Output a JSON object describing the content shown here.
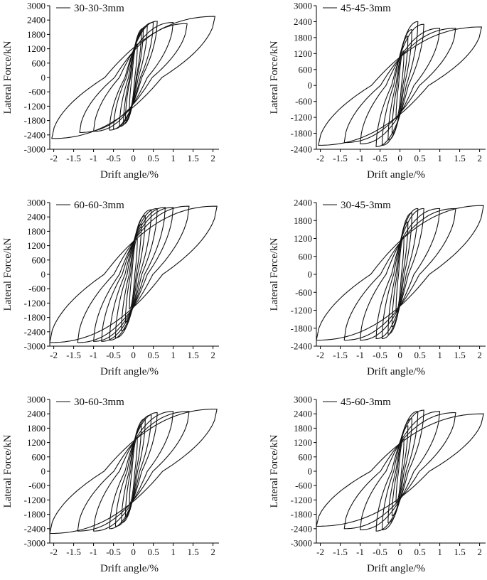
{
  "chart_data": [
    {
      "type": "line",
      "xlabel": "Drift angle/%",
      "ylabel": "Lateral Force/kN",
      "xlim": [
        -2.1,
        2.15
      ],
      "ylim": [
        -3000,
        3000
      ],
      "x_ticks": [
        -2,
        -1.5,
        -1,
        -0.5,
        0,
        0.5,
        1,
        1.5,
        2
      ],
      "x_tick_labels": [
        "-2",
        "-1.5",
        "-1",
        "-0.5",
        "0",
        "0.5",
        "1",
        "1.5",
        "2"
      ],
      "y_ticks": [
        3000,
        2400,
        1800,
        1200,
        600,
        0,
        -600,
        -1200,
        -1800,
        -2400,
        -3000
      ],
      "y_tick_labels": [
        "3000",
        "2400",
        "1800",
        "1200",
        "600",
        "0",
        "-600",
        "-1200",
        "-1800",
        "-2400",
        "-3000"
      ],
      "legend": "30-30-3mm",
      "legend_position": "top-left",
      "amplitudes": [
        [
          0.1,
          1400,
          -1350
        ],
        [
          0.2,
          1900,
          -1800
        ],
        [
          0.25,
          2050,
          -1950
        ],
        [
          0.35,
          2150,
          -2050
        ],
        [
          0.5,
          2300,
          -2150
        ],
        [
          0.6,
          2350,
          -2200
        ],
        [
          1.0,
          2300,
          -2250
        ],
        [
          1.35,
          2250,
          -2300
        ],
        [
          2.05,
          2550,
          -2550
        ]
      ]
    },
    {
      "type": "line",
      "xlabel": "Drift angle/%",
      "ylabel": "Lateral Force/kN",
      "xlim": [
        -2.1,
        2.15
      ],
      "ylim": [
        -2400,
        3000
      ],
      "x_ticks": [
        -2,
        -1.5,
        -1,
        -0.5,
        0,
        0.5,
        1,
        1.5,
        2
      ],
      "x_tick_labels": [
        "-2",
        "-1.5",
        "-1",
        "-0.5",
        "0",
        "0.5",
        "1",
        "1.5",
        "2"
      ],
      "y_ticks": [
        3000,
        2400,
        1800,
        1200,
        600,
        0,
        -600,
        -1200,
        -1800,
        -2400
      ],
      "y_tick_labels": [
        "3000",
        "2400",
        "1800",
        "1200",
        "600",
        "0",
        "-600",
        "-1200",
        "-1800",
        "-2400"
      ],
      "legend": "45-45-3mm",
      "legend_position": "top-left",
      "amplitudes": [
        [
          0.1,
          1300,
          -1250
        ],
        [
          0.2,
          1850,
          -1800
        ],
        [
          0.3,
          2100,
          -2050
        ],
        [
          0.45,
          2400,
          -2250
        ],
        [
          0.6,
          2300,
          -2300
        ],
        [
          1.0,
          2150,
          -2200
        ],
        [
          1.4,
          2150,
          -2150
        ],
        [
          2.05,
          2200,
          -2250
        ]
      ]
    },
    {
      "type": "line",
      "xlabel": "Drift angle/%",
      "ylabel": "Lateral Force/kN",
      "xlim": [
        -2.1,
        2.15
      ],
      "ylim": [
        -3000,
        3000
      ],
      "x_ticks": [
        -2,
        -1.5,
        -1,
        -0.5,
        0,
        0.5,
        1,
        1.5,
        2
      ],
      "x_tick_labels": [
        "-2",
        "-1.5",
        "-1",
        "-0.5",
        "0",
        "0.5",
        "1",
        "1.5",
        "2"
      ],
      "y_ticks": [
        3000,
        2400,
        1800,
        1200,
        600,
        0,
        -600,
        -1200,
        -1800,
        -2400,
        -3000
      ],
      "y_tick_labels": [
        "3000",
        "2400",
        "1800",
        "1200",
        "600",
        "0",
        "-600",
        "-1200",
        "-1800",
        "-2400",
        "-3000"
      ],
      "legend": "60-60-3mm",
      "legend_position": "top-left",
      "amplitudes": [
        [
          0.1,
          1500,
          -1450
        ],
        [
          0.2,
          2100,
          -2000
        ],
        [
          0.3,
          2450,
          -2350
        ],
        [
          0.45,
          2700,
          -2650
        ],
        [
          0.6,
          2750,
          -2750
        ],
        [
          0.8,
          2800,
          -2800
        ],
        [
          1.0,
          2800,
          -2800
        ],
        [
          1.4,
          2850,
          -2850
        ],
        [
          2.1,
          2850,
          -2850
        ]
      ]
    },
    {
      "type": "line",
      "xlabel": "Drift angle/%",
      "ylabel": "Lateral Force/kN",
      "xlim": [
        -2.1,
        2.15
      ],
      "ylim": [
        -2400,
        2400
      ],
      "x_ticks": [
        -2,
        -1.5,
        -1,
        -0.5,
        0,
        0.5,
        1,
        1.5,
        2
      ],
      "x_tick_labels": [
        "-2",
        "-1.5",
        "-1",
        "-0.5",
        "0",
        "0.5",
        "1",
        "1.5",
        "2"
      ],
      "y_ticks": [
        2400,
        1800,
        1200,
        600,
        0,
        -600,
        -1200,
        -1800,
        -2400
      ],
      "y_tick_labels": [
        "2400",
        "1800",
        "1200",
        "600",
        "0",
        "-600",
        "-1200",
        "-1800",
        "-2400"
      ],
      "legend": "30-45-3mm",
      "legend_position": "top-left",
      "amplitudes": [
        [
          0.1,
          1250,
          -1250
        ],
        [
          0.2,
          1750,
          -1750
        ],
        [
          0.3,
          2050,
          -2000
        ],
        [
          0.45,
          2200,
          -2150
        ],
        [
          0.6,
          2200,
          -2150
        ],
        [
          1.0,
          2200,
          -2200
        ],
        [
          1.4,
          2200,
          -2200
        ],
        [
          2.1,
          2300,
          -2200
        ]
      ]
    },
    {
      "type": "line",
      "xlabel": "Drift angle/%",
      "ylabel": "Lateral Force/kN",
      "xlim": [
        -2.1,
        2.15
      ],
      "ylim": [
        -3000,
        3000
      ],
      "x_ticks": [
        -2,
        -1.5,
        -1,
        -0.5,
        0,
        0.5,
        1,
        1.5,
        2
      ],
      "x_tick_labels": [
        "-2",
        "-1.5",
        "-1",
        "-0.5",
        "0",
        "0.5",
        "1",
        "1.5",
        "2"
      ],
      "y_ticks": [
        3000,
        2400,
        1800,
        1200,
        600,
        0,
        -600,
        -1200,
        -1800,
        -2400,
        -3000
      ],
      "y_tick_labels": [
        "3000",
        "2400",
        "1800",
        "1200",
        "600",
        "0",
        "-600",
        "-1200",
        "-1800",
        "-2400",
        "-3000"
      ],
      "legend": "30-60-3mm",
      "legend_position": "top-left",
      "amplitudes": [
        [
          0.1,
          1400,
          -1350
        ],
        [
          0.2,
          1950,
          -1900
        ],
        [
          0.3,
          2200,
          -2150
        ],
        [
          0.45,
          2350,
          -2300
        ],
        [
          0.6,
          2450,
          -2400
        ],
        [
          1.0,
          2500,
          -2500
        ],
        [
          1.4,
          2500,
          -2500
        ],
        [
          2.1,
          2600,
          -2600
        ]
      ]
    },
    {
      "type": "line",
      "xlabel": "Drift angle/%",
      "ylabel": "Lateral Force/kN",
      "xlim": [
        -2.1,
        2.15
      ],
      "ylim": [
        -3000,
        3000
      ],
      "x_ticks": [
        -2,
        -1.5,
        -1,
        -0.5,
        0,
        0.5,
        1,
        1.5,
        2
      ],
      "x_tick_labels": [
        "-2",
        "-1.5",
        "-1",
        "-0.5",
        "0",
        "0.5",
        "1",
        "1.5",
        "2"
      ],
      "y_ticks": [
        3000,
        2400,
        1800,
        1200,
        600,
        0,
        -600,
        -1200,
        -1800,
        -2400,
        -3000
      ],
      "y_tick_labels": [
        "3000",
        "2400",
        "1800",
        "1200",
        "600",
        "0",
        "-600",
        "-1200",
        "-1800",
        "-2400",
        "-3000"
      ],
      "legend": "45-60-3mm",
      "legend_position": "top-left",
      "amplitudes": [
        [
          0.1,
          1350,
          -1300
        ],
        [
          0.2,
          1900,
          -1850
        ],
        [
          0.3,
          2200,
          -2150
        ],
        [
          0.45,
          2500,
          -2450
        ],
        [
          0.6,
          2550,
          -2500
        ],
        [
          1.0,
          2500,
          -2450
        ],
        [
          1.4,
          2450,
          -2400
        ],
        [
          2.1,
          2400,
          -2300
        ]
      ]
    }
  ]
}
